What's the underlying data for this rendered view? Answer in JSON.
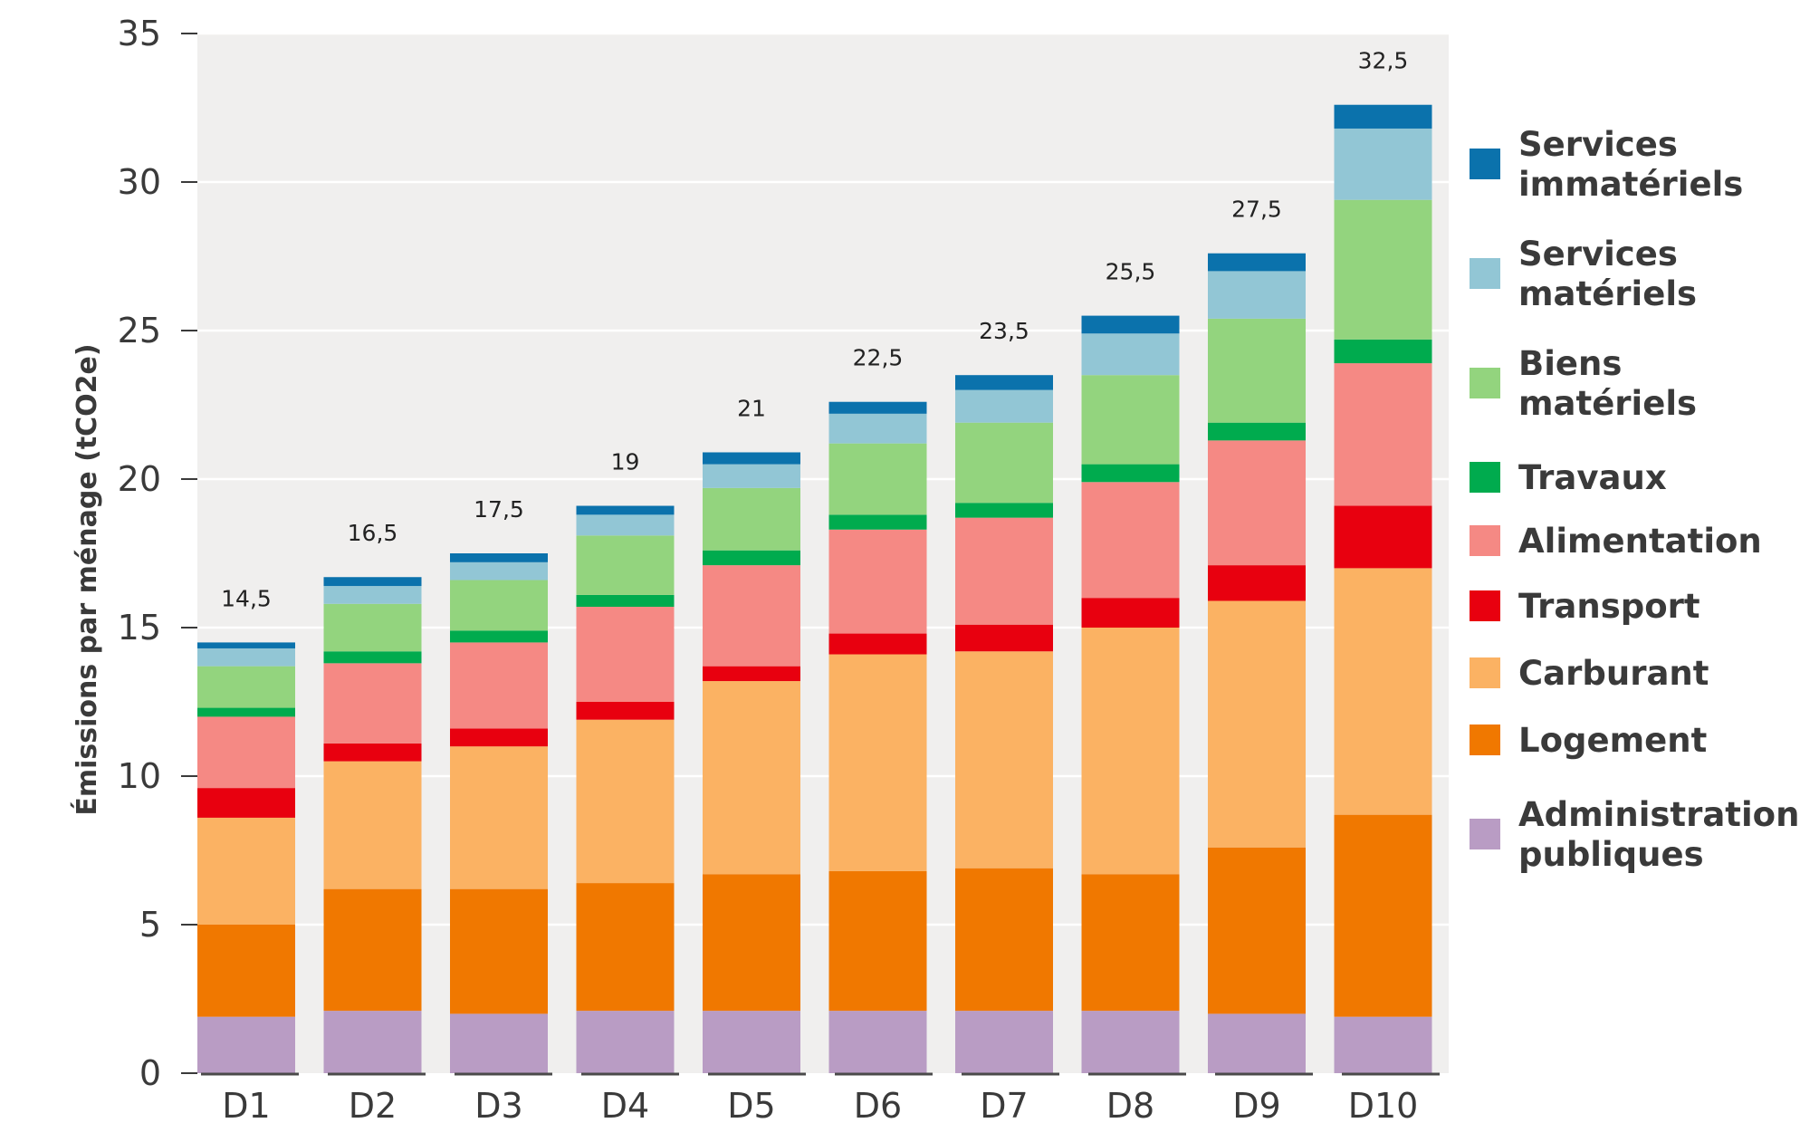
{
  "chart_data": {
    "type": "bar",
    "stacked": true,
    "title": "",
    "xlabel": "",
    "ylabel": "Émissions par ménage (tCO2e)",
    "ylim": [
      0,
      35
    ],
    "yticks": [
      0,
      5,
      10,
      15,
      20,
      25,
      30,
      35
    ],
    "categories": [
      "D1",
      "D2",
      "D3",
      "D4",
      "D5",
      "D6",
      "D7",
      "D8",
      "D9",
      "D10"
    ],
    "totals": [
      "14,5",
      "16,5",
      "17,5",
      "19",
      "21",
      "22,5",
      "23,5",
      "25,5",
      "27,5",
      "32,5"
    ],
    "background": "#f0efee",
    "legend_position": "right",
    "series": [
      {
        "name": "Administrations publiques",
        "legend_lines": [
          "Administrations",
          "publiques"
        ],
        "color": "#b99cc4",
        "values": [
          1.9,
          2.1,
          2.0,
          2.1,
          2.1,
          2.1,
          2.1,
          2.1,
          2.0,
          1.9
        ]
      },
      {
        "name": "Logement",
        "legend_lines": [
          "Logement"
        ],
        "color": "#f07800",
        "values": [
          3.1,
          4.1,
          4.2,
          4.3,
          4.6,
          4.7,
          4.8,
          4.6,
          5.6,
          6.8
        ]
      },
      {
        "name": "Carburant",
        "legend_lines": [
          "Carburant"
        ],
        "color": "#fbb263",
        "values": [
          3.6,
          4.3,
          4.8,
          5.5,
          6.5,
          7.3,
          7.3,
          8.3,
          8.3,
          8.3
        ]
      },
      {
        "name": "Transport",
        "legend_lines": [
          "Transport"
        ],
        "color": "#e8000f",
        "values": [
          1.0,
          0.6,
          0.6,
          0.6,
          0.5,
          0.7,
          0.9,
          1.0,
          1.2,
          2.1
        ]
      },
      {
        "name": "Alimentation",
        "legend_lines": [
          "Alimentation"
        ],
        "color": "#f58984",
        "values": [
          2.4,
          2.7,
          2.9,
          3.2,
          3.4,
          3.5,
          3.6,
          3.9,
          4.2,
          4.8
        ]
      },
      {
        "name": "Travaux",
        "legend_lines": [
          "Travaux"
        ],
        "color": "#00ab4e",
        "values": [
          0.3,
          0.4,
          0.4,
          0.4,
          0.5,
          0.5,
          0.5,
          0.6,
          0.6,
          0.8
        ]
      },
      {
        "name": "Biens matériels",
        "legend_lines": [
          "Biens",
          "matériels"
        ],
        "color": "#93d47e",
        "values": [
          1.4,
          1.6,
          1.7,
          2.0,
          2.1,
          2.4,
          2.7,
          3.0,
          3.5,
          4.7
        ]
      },
      {
        "name": "Services matériels",
        "legend_lines": [
          "Services",
          "matériels"
        ],
        "color": "#92c6d5",
        "values": [
          0.6,
          0.6,
          0.6,
          0.7,
          0.8,
          1.0,
          1.1,
          1.4,
          1.6,
          2.4
        ]
      },
      {
        "name": "Services immatériels",
        "legend_lines": [
          "Services",
          "immatériels"
        ],
        "color": "#0b72ac",
        "values": [
          0.2,
          0.3,
          0.3,
          0.3,
          0.4,
          0.4,
          0.5,
          0.6,
          0.6,
          0.8
        ]
      }
    ]
  }
}
